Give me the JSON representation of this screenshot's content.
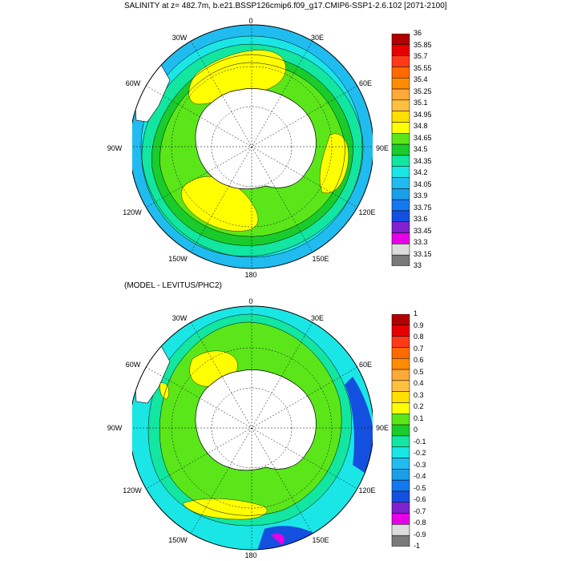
{
  "top_panel": {
    "title": "SALINITY at z= 482.7m, b.e21.BSSP126cmip6.f09_g17.CMIP6-SSP1-2.6.102 [2071-2100]",
    "lon_labels": [
      "0",
      "30E",
      "60E",
      "90E",
      "120E",
      "150E",
      "180",
      "150W",
      "120W",
      "90W",
      "60W",
      "30W"
    ],
    "colorbar": {
      "labels": [
        "36",
        "35.85",
        "35.7",
        "35.55",
        "35.4",
        "35.25",
        "35.1",
        "34.95",
        "34.8",
        "34.65",
        "34.5",
        "34.35",
        "34.2",
        "34.05",
        "33.9",
        "33.75",
        "33.6",
        "33.45",
        "33.3",
        "33.15",
        "33"
      ],
      "colors": [
        "#b00000",
        "#e60000",
        "#ff3a1a",
        "#ff6a00",
        "#ff8c00",
        "#ffa93a",
        "#ffc040",
        "#ffe000",
        "#ffff00",
        "#5be61a",
        "#19cc2b",
        "#12e6a0",
        "#1ae6e6",
        "#20bcf0",
        "#1aa0e8",
        "#1478f0",
        "#1450e0",
        "#8020d0",
        "#e600e6",
        "#dcdcdc",
        "#7a7a7a"
      ]
    }
  },
  "bottom_panel": {
    "title": "(MODEL - LEVITUS/PHC2)",
    "lon_labels": [
      "0",
      "30E",
      "60E",
      "90E",
      "120E",
      "150E",
      "180",
      "150W",
      "120W",
      "90W",
      "60W",
      "30W"
    ],
    "colorbar": {
      "labels": [
        "1",
        "0.9",
        "0.8",
        "0.7",
        "0.6",
        "0.5",
        "0.4",
        "0.3",
        "0.2",
        "0.1",
        "0",
        "-0.1",
        "-0.2",
        "-0.3",
        "-0.4",
        "-0.5",
        "-0.6",
        "-0.7",
        "-0.8",
        "-0.9",
        "-1"
      ],
      "colors": [
        "#b00000",
        "#e60000",
        "#ff3a1a",
        "#ff6a00",
        "#ff8c00",
        "#ffa93a",
        "#ffc040",
        "#ffe000",
        "#ffff00",
        "#5be61a",
        "#19cc2b",
        "#12e6a0",
        "#1ae6e6",
        "#20bcf0",
        "#1aa0e8",
        "#1478f0",
        "#1450e0",
        "#8020d0",
        "#e600e6",
        "#dcdcdc",
        "#7a7a7a"
      ]
    }
  }
}
